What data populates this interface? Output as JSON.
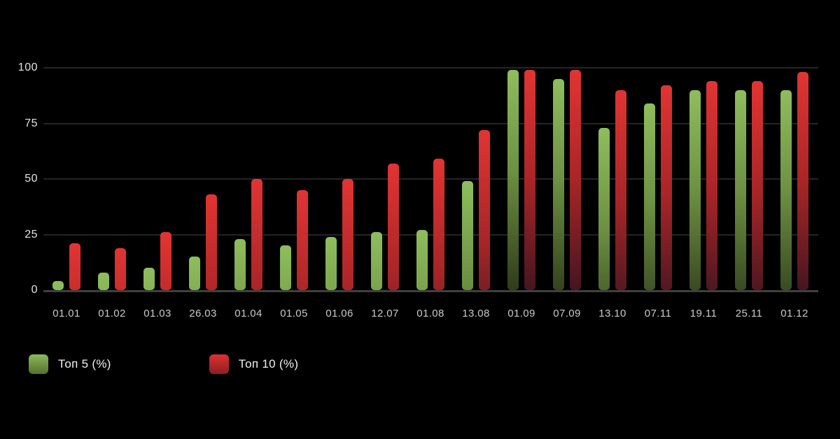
{
  "chart_data": {
    "type": "bar",
    "categories": [
      "01.01",
      "01.02",
      "01.03",
      "26.03",
      "01.04",
      "01.05",
      "01.06",
      "12.07",
      "01.08",
      "13.08",
      "01.09",
      "07.09",
      "13.10",
      "07.11",
      "19.11",
      "25.11",
      "01.12"
    ],
    "series": [
      {
        "name": "Топ 5 (%)",
        "color_top": "#8fbd5d",
        "color_bottom": "#2e3a1b",
        "values": [
          4,
          8,
          10,
          15,
          23,
          20,
          24,
          26,
          27,
          49,
          99,
          95,
          73,
          84,
          90,
          90,
          90
        ]
      },
      {
        "name": "Топ 10 (%)",
        "color_top": "#e23433",
        "color_bottom": "#421520",
        "values": [
          21,
          19,
          26,
          43,
          50,
          45,
          50,
          57,
          59,
          72,
          99,
          99,
          90,
          92,
          94,
          94,
          98
        ]
      }
    ],
    "title": "",
    "xlabel": "",
    "ylabel": "",
    "ylim": [
      0,
      100
    ],
    "yticks": [
      0,
      25,
      50,
      75,
      100
    ],
    "grid": "horizontal",
    "legend_position": "bottom-left",
    "background": "#000000"
  },
  "legend": {
    "items": [
      {
        "label": "Топ 5 (%)"
      },
      {
        "label": "Топ 10 (%)"
      }
    ]
  }
}
